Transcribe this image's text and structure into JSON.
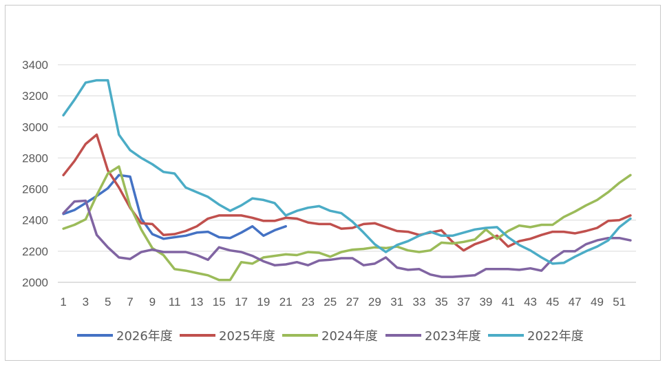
{
  "chart_data": {
    "type": "line",
    "xlabel": "",
    "ylabel": "",
    "ylim": [
      2000,
      3400
    ],
    "yticks": [
      2000,
      2200,
      2400,
      2600,
      2800,
      3000,
      3200,
      3400
    ],
    "xticks": [
      1,
      3,
      5,
      7,
      9,
      11,
      13,
      15,
      17,
      19,
      21,
      23,
      25,
      27,
      29,
      31,
      33,
      35,
      37,
      39,
      41,
      43,
      45,
      47,
      49,
      51
    ],
    "x_range": [
      1,
      52
    ],
    "grid": "horizontal",
    "legend_position": "bottom",
    "series": [
      {
        "name": "2026年度",
        "color": "#4472c4",
        "values": [
          2440,
          2465,
          2510,
          2555,
          2605,
          2690,
          2680,
          2410,
          2310,
          2280,
          2290,
          2300,
          2320,
          2325,
          2290,
          2285,
          2320,
          2360,
          2300,
          2335,
          2360
        ]
      },
      {
        "name": "2025年度",
        "color": "#c0504d",
        "values": [
          2690,
          2780,
          2890,
          2950,
          2720,
          2610,
          2480,
          2380,
          2375,
          2305,
          2310,
          2330,
          2360,
          2410,
          2430,
          2430,
          2430,
          2415,
          2395,
          2395,
          2415,
          2410,
          2385,
          2375,
          2375,
          2345,
          2350,
          2375,
          2380,
          2355,
          2330,
          2325,
          2305,
          2320,
          2335,
          2260,
          2205,
          2245,
          2270,
          2300,
          2230,
          2265,
          2280,
          2305,
          2325,
          2325,
          2315,
          2330,
          2350,
          2395,
          2400,
          2430
        ]
      },
      {
        "name": "2024年度",
        "color": "#9bbb59",
        "values": [
          2345,
          2370,
          2405,
          2560,
          2700,
          2745,
          2490,
          2340,
          2220,
          2175,
          2085,
          2075,
          2060,
          2045,
          2015,
          2015,
          2130,
          2120,
          2160,
          2170,
          2180,
          2175,
          2195,
          2190,
          2165,
          2195,
          2210,
          2215,
          2225,
          2220,
          2230,
          2205,
          2195,
          2205,
          2255,
          2250,
          2260,
          2275,
          2340,
          2280,
          2330,
          2365,
          2355,
          2370,
          2370,
          2420,
          2455,
          2495,
          2530,
          2580,
          2640,
          2690
        ]
      },
      {
        "name": "2023年度",
        "color": "#8064a2",
        "values": [
          2445,
          2520,
          2525,
          2305,
          2225,
          2160,
          2150,
          2195,
          2210,
          2195,
          2195,
          2195,
          2175,
          2145,
          2225,
          2205,
          2195,
          2170,
          2135,
          2110,
          2115,
          2130,
          2110,
          2140,
          2145,
          2155,
          2155,
          2110,
          2120,
          2160,
          2095,
          2080,
          2085,
          2050,
          2035,
          2035,
          2040,
          2045,
          2085,
          2085,
          2085,
          2080,
          2090,
          2075,
          2150,
          2200,
          2200,
          2245,
          2270,
          2285,
          2285,
          2270
        ]
      },
      {
        "name": "2022年度",
        "color": "#4bacc6",
        "values": [
          3075,
          3175,
          3285,
          3300,
          3300,
          2950,
          2850,
          2800,
          2760,
          2710,
          2700,
          2610,
          2580,
          2550,
          2500,
          2460,
          2495,
          2540,
          2530,
          2510,
          2430,
          2460,
          2480,
          2490,
          2460,
          2445,
          2390,
          2320,
          2245,
          2195,
          2240,
          2265,
          2300,
          2325,
          2300,
          2300,
          2320,
          2340,
          2350,
          2355,
          2290,
          2240,
          2205,
          2160,
          2120,
          2125,
          2165,
          2200,
          2230,
          2270,
          2355,
          2410
        ]
      }
    ]
  }
}
